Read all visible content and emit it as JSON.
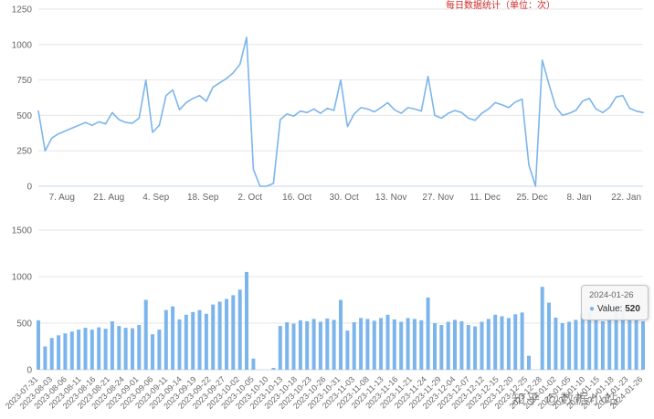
{
  "page": {
    "top_note": "每日数据统计（单位：次）",
    "watermark": "知乎 @数据小站"
  },
  "tooltip": {
    "date": "2024-01-26",
    "marker": "●",
    "label": "Value:",
    "value": "520"
  },
  "colors": {
    "series": "#7cb5ec",
    "grid": "#e6e6e6",
    "axis_line": "#ccd6eb",
    "axis_label": "#666666"
  },
  "chart_data": {
    "type": [
      "line",
      "bar"
    ],
    "title": "",
    "xlabel": "",
    "ylabel": "",
    "legend": "none",
    "grid": "on",
    "start_date": "2023-07-31",
    "end_date": "2024-01-26",
    "step_days": 2,
    "total_days": 180,
    "values": [
      530,
      250,
      340,
      370,
      390,
      410,
      430,
      450,
      430,
      455,
      440,
      520,
      470,
      450,
      445,
      480,
      750,
      380,
      430,
      640,
      680,
      540,
      590,
      620,
      640,
      600,
      700,
      730,
      760,
      800,
      860,
      1050,
      120,
      0,
      0,
      20,
      470,
      510,
      495,
      530,
      520,
      545,
      515,
      550,
      535,
      750,
      420,
      510,
      555,
      545,
      525,
      555,
      590,
      540,
      515,
      555,
      545,
      530,
      775,
      500,
      480,
      515,
      535,
      520,
      480,
      465,
      515,
      545,
      590,
      575,
      555,
      595,
      615,
      150,
      0,
      890,
      720,
      560,
      500,
      515,
      535,
      600,
      620,
      545,
      520,
      555,
      630,
      640,
      550,
      530,
      520
    ],
    "line_chart": {
      "type": "line",
      "ylim": [
        0,
        1250
      ],
      "yticks": [
        0,
        250,
        500,
        750,
        1000,
        1250
      ],
      "xtick_labels": [
        "7. Aug",
        "21. Aug",
        "4. Sep",
        "18. Sep",
        "2. Oct",
        "16. Oct",
        "30. Oct",
        "13. Nov",
        "27. Nov",
        "11. Dec",
        "25. Dec",
        "8. Jan",
        "22. Jan"
      ],
      "xtick_day_offsets": [
        7,
        21,
        35,
        49,
        63,
        77,
        91,
        105,
        119,
        133,
        147,
        161,
        175
      ]
    },
    "bar_chart": {
      "type": "bar",
      "ylim": [
        0,
        1500
      ],
      "yticks": [
        0,
        500,
        1000,
        1500
      ],
      "xtick_labels": [
        "2023-07-31",
        "2023-08-03",
        "2023-08-06",
        "2023-08-11",
        "2023-08-16",
        "2023-08-21",
        "2023-08-24",
        "2023-09-01",
        "2023-09-06",
        "2023-09-11",
        "2023-09-14",
        "2023-09-19",
        "2023-09-22",
        "2023-09-27",
        "2023-10-02",
        "2023-10-05",
        "2023-10-10",
        "2023-10-13",
        "2023-10-18",
        "2023-10-23",
        "2023-10-26",
        "2023-10-31",
        "2023-11-03",
        "2023-11-08",
        "2023-11-13",
        "2023-11-16",
        "2023-11-21",
        "2023-11-24",
        "2023-11-29",
        "2023-12-04",
        "2023-12-07",
        "2023-12-12",
        "2023-12-15",
        "2023-12-20",
        "2023-12-25",
        "2023-12-28",
        "2024-01-02",
        "2024-01-05",
        "2024-01-10",
        "2024-01-15",
        "2024-01-18",
        "2024-01-23",
        "2024-01-26"
      ]
    }
  }
}
